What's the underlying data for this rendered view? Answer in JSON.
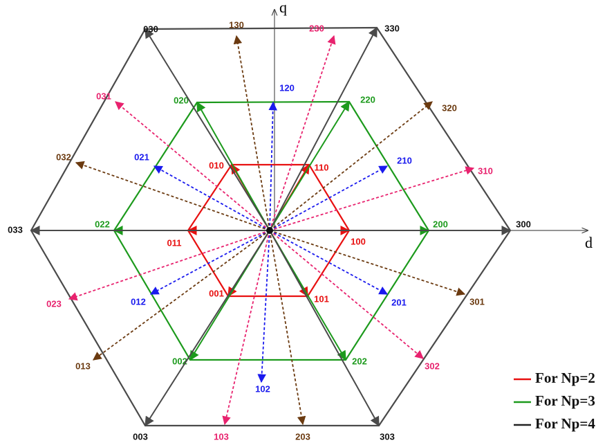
{
  "axes": {
    "q": "q",
    "d": "d"
  },
  "groups": [
    {
      "color": "#e81010",
      "dashed": false,
      "hexagon": true,
      "labels": [
        "100",
        "110",
        "010",
        "011",
        "001",
        "101"
      ]
    },
    {
      "color": "#1c9a1c",
      "dashed": false,
      "hexagon": true,
      "labels": [
        "200",
        "220",
        "020",
        "022",
        "002",
        "202"
      ]
    },
    {
      "color": "#4a4a4a",
      "dashed": false,
      "hexagon": true,
      "labels": [
        "300",
        "330",
        "030",
        "033",
        "003",
        "303"
      ]
    },
    {
      "color": "#1a1aee",
      "dashed": true,
      "hexagon": false,
      "labels": [
        "120",
        "210",
        "021",
        "012",
        "201",
        "102"
      ]
    },
    {
      "color": "#e8226e",
      "dashed": true,
      "hexagon": false,
      "labels": [
        "230",
        "310",
        "031",
        "023",
        "302",
        "103"
      ]
    },
    {
      "color": "#6b3a10",
      "dashed": true,
      "hexagon": false,
      "labels": [
        "130",
        "320",
        "032",
        "013",
        "301",
        "203"
      ]
    }
  ],
  "legend": [
    {
      "label": "For Np=2",
      "color": "#e81010"
    },
    {
      "label": "For Np=3",
      "color": "#1c9a1c"
    },
    {
      "label": "For Np=4",
      "color": "#222222"
    }
  ]
}
